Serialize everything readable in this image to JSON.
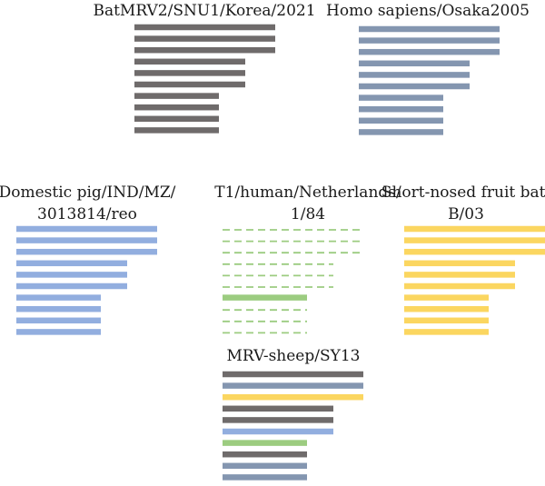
{
  "colors": {
    "bat_grey": "#6f6b6b",
    "human_steel_blue": "#8496b0",
    "pig_light_blue": "#92aedf",
    "t1_green": "#9ccc80",
    "fruit_bat_yellow": "#fbd660",
    "dash_gap": "#ffffff"
  },
  "panels": [
    {
      "id": "bat-mrv2",
      "title_lines": [
        "BatMRV2/SNU1/Korea/2021"
      ],
      "segments": [
        {
          "color": "#6f6b6b",
          "style": "solid",
          "length": "long"
        },
        {
          "color": "#6f6b6b",
          "style": "solid",
          "length": "long"
        },
        {
          "color": "#6f6b6b",
          "style": "solid",
          "length": "long"
        },
        {
          "color": "#6f6b6b",
          "style": "solid",
          "length": "medium"
        },
        {
          "color": "#6f6b6b",
          "style": "solid",
          "length": "medium"
        },
        {
          "color": "#6f6b6b",
          "style": "solid",
          "length": "medium"
        },
        {
          "color": "#6f6b6b",
          "style": "solid",
          "length": "short"
        },
        {
          "color": "#6f6b6b",
          "style": "solid",
          "length": "short"
        },
        {
          "color": "#6f6b6b",
          "style": "solid",
          "length": "short"
        },
        {
          "color": "#6f6b6b",
          "style": "solid",
          "length": "short"
        }
      ]
    },
    {
      "id": "homo-sapiens",
      "title_lines": [
        "Homo sapiens/Osaka2005"
      ],
      "segments": [
        {
          "color": "#8496b0",
          "style": "solid",
          "length": "long"
        },
        {
          "color": "#8496b0",
          "style": "solid",
          "length": "long"
        },
        {
          "color": "#8496b0",
          "style": "solid",
          "length": "long"
        },
        {
          "color": "#8496b0",
          "style": "solid",
          "length": "medium"
        },
        {
          "color": "#8496b0",
          "style": "solid",
          "length": "medium"
        },
        {
          "color": "#8496b0",
          "style": "solid",
          "length": "medium"
        },
        {
          "color": "#8496b0",
          "style": "solid",
          "length": "short"
        },
        {
          "color": "#8496b0",
          "style": "solid",
          "length": "short"
        },
        {
          "color": "#8496b0",
          "style": "solid",
          "length": "short"
        },
        {
          "color": "#8496b0",
          "style": "solid",
          "length": "short"
        }
      ]
    },
    {
      "id": "domestic-pig",
      "title_lines": [
        "Domestic pig/IND/MZ/",
        "3013814/reo"
      ],
      "segments": [
        {
          "color": "#92aedf",
          "style": "solid",
          "length": "long"
        },
        {
          "color": "#92aedf",
          "style": "solid",
          "length": "long"
        },
        {
          "color": "#92aedf",
          "style": "solid",
          "length": "long"
        },
        {
          "color": "#92aedf",
          "style": "solid",
          "length": "medium"
        },
        {
          "color": "#92aedf",
          "style": "solid",
          "length": "medium"
        },
        {
          "color": "#92aedf",
          "style": "solid",
          "length": "medium"
        },
        {
          "color": "#92aedf",
          "style": "solid",
          "length": "short"
        },
        {
          "color": "#92aedf",
          "style": "solid",
          "length": "short"
        },
        {
          "color": "#92aedf",
          "style": "solid",
          "length": "short"
        },
        {
          "color": "#92aedf",
          "style": "solid",
          "length": "short"
        }
      ]
    },
    {
      "id": "t1-human",
      "title_lines": [
        "T1/human/Netherlands/",
        "1/84"
      ],
      "segments": [
        {
          "color": "#9ccc80",
          "style": "dashed",
          "length": "long"
        },
        {
          "color": "#9ccc80",
          "style": "dashed",
          "length": "long"
        },
        {
          "color": "#9ccc80",
          "style": "dashed",
          "length": "long"
        },
        {
          "color": "#9ccc80",
          "style": "dashed",
          "length": "medium"
        },
        {
          "color": "#9ccc80",
          "style": "dashed",
          "length": "medium"
        },
        {
          "color": "#9ccc80",
          "style": "dashed",
          "length": "medium"
        },
        {
          "color": "#9ccc80",
          "style": "solid",
          "length": "short"
        },
        {
          "color": "#9ccc80",
          "style": "dashed",
          "length": "short"
        },
        {
          "color": "#9ccc80",
          "style": "dashed",
          "length": "short"
        },
        {
          "color": "#9ccc80",
          "style": "dashed",
          "length": "short"
        }
      ]
    },
    {
      "id": "fruit-bat",
      "title_lines": [
        "Short-nosed fruit bat/",
        "B/03"
      ],
      "segments": [
        {
          "color": "#fbd660",
          "style": "solid",
          "length": "long"
        },
        {
          "color": "#fbd660",
          "style": "solid",
          "length": "long"
        },
        {
          "color": "#fbd660",
          "style": "solid",
          "length": "long"
        },
        {
          "color": "#fbd660",
          "style": "solid",
          "length": "medium"
        },
        {
          "color": "#fbd660",
          "style": "solid",
          "length": "medium"
        },
        {
          "color": "#fbd660",
          "style": "solid",
          "length": "medium"
        },
        {
          "color": "#fbd660",
          "style": "solid",
          "length": "short"
        },
        {
          "color": "#fbd660",
          "style": "solid",
          "length": "short"
        },
        {
          "color": "#fbd660",
          "style": "solid",
          "length": "short"
        },
        {
          "color": "#fbd660",
          "style": "solid",
          "length": "short"
        }
      ]
    },
    {
      "id": "mrv-sheep",
      "title_lines": [
        "MRV-sheep/SY13"
      ],
      "segments": [
        {
          "color": "#6f6b6b",
          "style": "solid",
          "length": "long"
        },
        {
          "color": "#8496b0",
          "style": "solid",
          "length": "long"
        },
        {
          "color": "#fbd660",
          "style": "solid",
          "length": "long"
        },
        {
          "color": "#6f6b6b",
          "style": "solid",
          "length": "medium"
        },
        {
          "color": "#6f6b6b",
          "style": "solid",
          "length": "medium"
        },
        {
          "color": "#92aedf",
          "style": "solid",
          "length": "medium"
        },
        {
          "color": "#9ccc80",
          "style": "solid",
          "length": "short"
        },
        {
          "color": "#6f6b6b",
          "style": "solid",
          "length": "short"
        },
        {
          "color": "#8496b0",
          "style": "solid",
          "length": "short"
        },
        {
          "color": "#8496b0",
          "style": "solid",
          "length": "short"
        }
      ]
    }
  ]
}
